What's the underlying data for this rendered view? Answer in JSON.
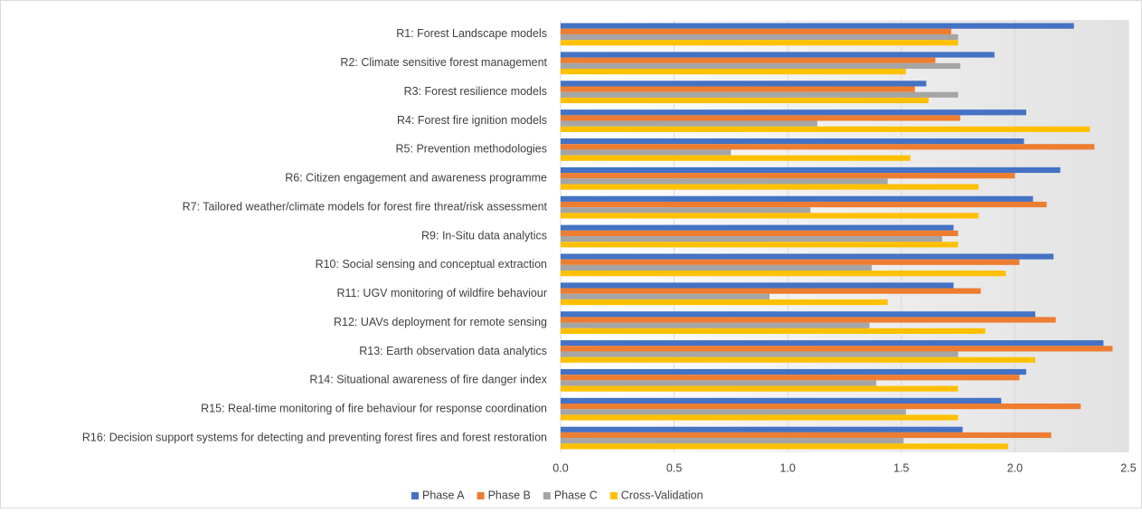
{
  "chart_data": {
    "type": "hbar",
    "categories": [
      "R1: Forest Landscape models",
      "R2: Climate sensitive forest management",
      "R3: Forest resilience models",
      "R4: Forest fire ignition models",
      "R5: Prevention methodologies",
      "R6: Citizen engagement and awareness programme",
      "R7: Tailored weather/climate models for forest fire threat/risk assessment",
      "R9: In-Situ data analytics",
      "R10: Social sensing and conceptual extraction",
      "R11: UGV monitoring of wildfire behaviour",
      "R12: UAVs deployment for remote sensing",
      "R13: Earth observation data analytics",
      "R14: Situational awareness of fire danger index",
      "R15: Real-time monitoring of fire behaviour for response coordination",
      "R16: Decision support systems for detecting and preventing forest fires and forest restoration"
    ],
    "series": [
      {
        "name": "Phase A",
        "color": "#4472c4",
        "values": [
          2.26,
          1.91,
          1.61,
          2.05,
          2.04,
          2.2,
          2.08,
          1.73,
          2.17,
          1.73,
          2.09,
          2.39,
          2.05,
          1.94,
          1.77
        ]
      },
      {
        "name": "Phase B",
        "color": "#ed7d31",
        "values": [
          1.72,
          1.65,
          1.56,
          1.76,
          2.35,
          2.0,
          2.14,
          1.75,
          2.02,
          1.85,
          2.18,
          2.43,
          2.02,
          2.29,
          2.16
        ]
      },
      {
        "name": "Phase C",
        "color": "#a5a5a5",
        "values": [
          1.75,
          1.76,
          1.75,
          1.13,
          0.75,
          1.44,
          1.1,
          1.68,
          1.37,
          0.92,
          1.36,
          1.75,
          1.39,
          1.52,
          1.51
        ]
      },
      {
        "name": "Cross-Validation",
        "color": "#ffc000",
        "values": [
          1.75,
          1.52,
          1.62,
          2.33,
          1.54,
          1.84,
          1.84,
          1.75,
          1.96,
          1.44,
          1.87,
          2.09,
          1.75,
          1.75,
          1.97
        ]
      }
    ],
    "xlim": [
      0,
      2.5
    ],
    "xticks": [
      {
        "value": 0,
        "label": "0.0"
      },
      0.5,
      {
        "value": 1,
        "label": "1.0"
      },
      1.5,
      {
        "value": 2,
        "label": "2.0"
      },
      2.5
    ],
    "grid": true,
    "legend": "bottom"
  }
}
